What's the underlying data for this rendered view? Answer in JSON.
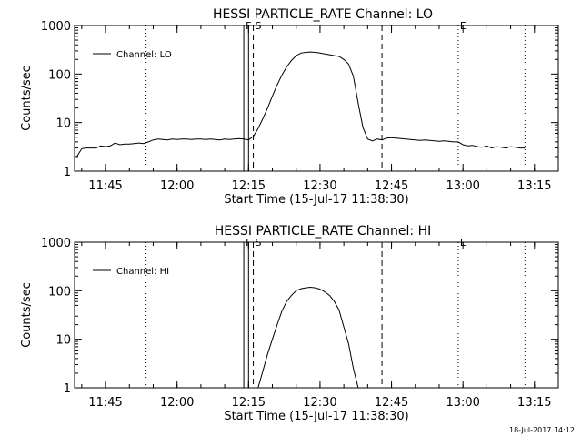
{
  "footer": {
    "timestamp": "18-Jul-2017 14:12"
  },
  "chart_data": [
    {
      "type": "line",
      "title": "HESSI PARTICLE_RATE Channel: LO",
      "xlabel": "Start Time (15-Jul-17 11:38:30)",
      "ylabel": "Counts/sec",
      "yscale": "log",
      "ylim": [
        1,
        1000
      ],
      "xlim": [
        "11:38:30",
        "13:20:00"
      ],
      "xticks": [
        "11:45",
        "12:00",
        "12:15",
        "12:30",
        "12:45",
        "13:00",
        "13:15"
      ],
      "yticks": [
        "1",
        "10",
        "100",
        "1000"
      ],
      "legend": {
        "position": "top-left",
        "entries": [
          "Channel: LO"
        ]
      },
      "markers": [
        {
          "time": "11:53:30",
          "style": "dotted",
          "label": ""
        },
        {
          "time": "12:14:00",
          "style": "solid",
          "label": "F"
        },
        {
          "time": "12:15:00",
          "style": "solid",
          "label": ""
        },
        {
          "time": "12:16:00",
          "style": "dashed",
          "label": "S"
        },
        {
          "time": "12:43:00",
          "style": "dashed",
          "label": ""
        },
        {
          "time": "12:59:00",
          "style": "dotted",
          "label": "E"
        },
        {
          "time": "13:13:00",
          "style": "dotted",
          "label": ""
        }
      ],
      "series": [
        {
          "name": "Channel: LO",
          "x": [
            "11:39:00",
            "11:40:00",
            "11:41:00",
            "11:42:00",
            "11:43:00",
            "11:44:00",
            "11:45:00",
            "11:46:00",
            "11:47:00",
            "11:48:00",
            "11:49:00",
            "11:50:00",
            "11:51:00",
            "11:52:00",
            "11:53:00",
            "11:54:00",
            "11:55:00",
            "11:56:00",
            "11:57:00",
            "11:58:00",
            "11:59:00",
            "12:00:00",
            "12:01:00",
            "12:02:00",
            "12:03:00",
            "12:04:00",
            "12:05:00",
            "12:06:00",
            "12:07:00",
            "12:08:00",
            "12:09:00",
            "12:10:00",
            "12:11:00",
            "12:12:00",
            "12:13:00",
            "12:14:00",
            "12:15:00",
            "12:16:00",
            "12:17:00",
            "12:18:00",
            "12:19:00",
            "12:20:00",
            "12:21:00",
            "12:22:00",
            "12:23:00",
            "12:24:00",
            "12:25:00",
            "12:26:00",
            "12:27:00",
            "12:28:00",
            "12:29:00",
            "12:30:00",
            "12:31:00",
            "12:32:00",
            "12:33:00",
            "12:34:00",
            "12:35:00",
            "12:36:00",
            "12:37:00",
            "12:38:00",
            "12:39:00",
            "12:40:00",
            "12:41:00",
            "12:42:00",
            "12:43:00",
            "12:44:00",
            "12:45:00",
            "12:46:00",
            "12:47:00",
            "12:48:00",
            "12:49:00",
            "12:50:00",
            "12:51:00",
            "12:52:00",
            "12:53:00",
            "12:54:00",
            "12:55:00",
            "12:56:00",
            "12:57:00",
            "12:58:00",
            "12:59:00",
            "13:00:00",
            "13:01:00",
            "13:02:00",
            "13:03:00",
            "13:04:00",
            "13:05:00",
            "13:06:00",
            "13:07:00",
            "13:08:00",
            "13:09:00",
            "13:10:00",
            "13:11:00",
            "13:12:00",
            "13:13:00"
          ],
          "values": [
            2.0,
            2.9,
            3.0,
            3.0,
            3.0,
            3.3,
            3.2,
            3.3,
            3.8,
            3.5,
            3.6,
            3.6,
            3.7,
            3.8,
            3.7,
            4.0,
            4.4,
            4.6,
            4.5,
            4.4,
            4.6,
            4.5,
            4.6,
            4.6,
            4.5,
            4.6,
            4.6,
            4.5,
            4.6,
            4.5,
            4.4,
            4.6,
            4.5,
            4.6,
            4.7,
            4.6,
            4.4,
            5.2,
            7.5,
            12,
            20,
            35,
            60,
            95,
            140,
            190,
            240,
            270,
            280,
            285,
            280,
            270,
            260,
            250,
            240,
            230,
            200,
            160,
            90,
            25,
            8.0,
            4.6,
            4.2,
            4.6,
            4.4,
            4.8,
            4.9,
            4.8,
            4.7,
            4.6,
            4.5,
            4.4,
            4.3,
            4.4,
            4.3,
            4.2,
            4.1,
            4.2,
            4.1,
            4.0,
            4.0,
            3.5,
            3.3,
            3.4,
            3.2,
            3.1,
            3.3,
            3.0,
            3.2,
            3.1,
            3.0,
            3.2,
            3.1,
            3.0,
            3.0
          ]
        }
      ]
    },
    {
      "type": "line",
      "title": "HESSI PARTICLE_RATE Channel: HI",
      "xlabel": "Start Time (15-Jul-17 11:38:30)",
      "ylabel": "Counts/sec",
      "yscale": "log",
      "ylim": [
        1,
        1000
      ],
      "xlim": [
        "11:38:30",
        "13:20:00"
      ],
      "xticks": [
        "11:45",
        "12:00",
        "12:15",
        "12:30",
        "12:45",
        "13:00",
        "13:15"
      ],
      "yticks": [
        "1",
        "10",
        "100",
        "1000"
      ],
      "legend": {
        "position": "top-left",
        "entries": [
          "Channel: HI"
        ]
      },
      "markers": [
        {
          "time": "11:53:30",
          "style": "dotted",
          "label": ""
        },
        {
          "time": "12:14:00",
          "style": "solid",
          "label": "F"
        },
        {
          "time": "12:15:00",
          "style": "solid",
          "label": ""
        },
        {
          "time": "12:16:00",
          "style": "dashed",
          "label": "S"
        },
        {
          "time": "12:43:00",
          "style": "dashed",
          "label": ""
        },
        {
          "time": "12:59:00",
          "style": "dotted",
          "label": "E"
        },
        {
          "time": "13:13:00",
          "style": "dotted",
          "label": ""
        }
      ],
      "series": [
        {
          "name": "Channel: HI",
          "x": [
            "12:17:00",
            "12:18:00",
            "12:19:00",
            "12:20:00",
            "12:21:00",
            "12:22:00",
            "12:23:00",
            "12:24:00",
            "12:25:00",
            "12:26:00",
            "12:27:00",
            "12:28:00",
            "12:29:00",
            "12:30:00",
            "12:31:00",
            "12:32:00",
            "12:33:00",
            "12:34:00",
            "12:35:00",
            "12:36:00",
            "12:37:00",
            "12:38:00"
          ],
          "values": [
            1.0,
            2.2,
            5.0,
            10,
            20,
            38,
            60,
            80,
            100,
            110,
            115,
            118,
            115,
            108,
            95,
            80,
            60,
            40,
            18,
            8,
            2.5,
            1.0
          ]
        }
      ]
    }
  ]
}
